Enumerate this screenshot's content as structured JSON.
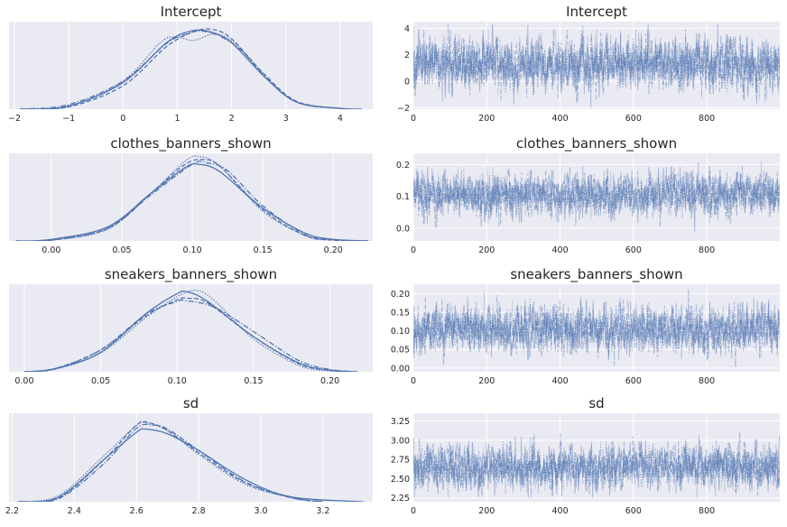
{
  "chart_data": [
    {
      "type": "line",
      "kind": "density",
      "title": "Intercept",
      "xlim": [
        -2.1,
        4.6
      ],
      "ylim": [
        0,
        1.12
      ],
      "xticks": [
        -2,
        -1,
        0,
        1,
        2,
        3,
        4
      ],
      "xtick_labels": [
        "−2",
        "−1",
        "0",
        "1",
        "2",
        "3",
        "4"
      ],
      "yticks": [],
      "ytick_labels": [],
      "line_styles": [
        "solid",
        "dashed",
        "dotted",
        "dashdot"
      ],
      "series_peaks": [
        {
          "style": "solid",
          "x": [
            -1.9,
            -1.0,
            0.0,
            0.8,
            1.25,
            1.6,
            2.0,
            2.6,
            3.2,
            4.0,
            4.4
          ],
          "y": [
            0.0,
            0.04,
            0.34,
            0.85,
            1.0,
            0.99,
            0.85,
            0.42,
            0.09,
            0.01,
            0.0
          ]
        },
        {
          "style": "dashed",
          "x": [
            -1.9,
            -1.0,
            0.0,
            0.8,
            1.3,
            1.65,
            2.0,
            2.6,
            3.2,
            4.0,
            4.4
          ],
          "y": [
            0.0,
            0.03,
            0.3,
            0.8,
            0.99,
            1.02,
            0.9,
            0.45,
            0.1,
            0.01,
            0.0
          ]
        },
        {
          "style": "dotted",
          "x": [
            -1.9,
            -1.0,
            0.0,
            0.7,
            1.0,
            1.3,
            1.7,
            2.1,
            2.6,
            3.2,
            4.0,
            4.4
          ],
          "y": [
            0.0,
            0.04,
            0.36,
            0.86,
            0.92,
            0.88,
            0.96,
            0.82,
            0.42,
            0.09,
            0.01,
            0.0
          ]
        },
        {
          "style": "dashdot",
          "x": [
            -1.9,
            -1.0,
            0.0,
            0.8,
            1.2,
            1.45,
            1.8,
            2.2,
            2.7,
            3.2,
            4.0,
            4.4
          ],
          "y": [
            0.0,
            0.06,
            0.36,
            0.84,
            0.97,
            1.0,
            0.93,
            0.74,
            0.36,
            0.09,
            0.01,
            0.0
          ]
        }
      ]
    },
    {
      "type": "line",
      "kind": "trace",
      "title": "Intercept",
      "xlim": [
        0,
        999
      ],
      "ylim": [
        -2.1,
        4.5
      ],
      "xticks": [
        0,
        200,
        400,
        600,
        800
      ],
      "xtick_labels": [
        "0",
        "200",
        "400",
        "600",
        "800"
      ],
      "yticks": [
        -2,
        0,
        2,
        4
      ],
      "ytick_labels": [
        "−2",
        "0",
        "2",
        "4"
      ],
      "trace": {
        "draws": 1000,
        "chains": 4,
        "mean": 1.35,
        "sd": 0.95,
        "min": -2.0,
        "max": 4.3
      }
    },
    {
      "type": "line",
      "kind": "density",
      "title": "clothes_banners_shown",
      "xlim": [
        -0.03,
        0.228
      ],
      "ylim": [
        0,
        1.12
      ],
      "xticks": [
        0.0,
        0.05,
        0.1,
        0.15,
        0.2
      ],
      "xtick_labels": [
        "0.00",
        "0.05",
        "0.10",
        "0.15",
        "0.20"
      ],
      "yticks": [],
      "ytick_labels": [],
      "line_styles": [
        "solid",
        "dashed",
        "dotted",
        "dashdot"
      ],
      "series_peaks": [
        {
          "style": "solid",
          "x": [
            -0.025,
            0.0,
            0.04,
            0.07,
            0.095,
            0.105,
            0.12,
            0.15,
            0.18,
            0.2,
            0.225
          ],
          "y": [
            0.0,
            0.02,
            0.18,
            0.6,
            0.94,
            0.98,
            0.88,
            0.42,
            0.1,
            0.02,
            0.0
          ]
        },
        {
          "style": "dashed",
          "x": [
            -0.025,
            0.0,
            0.04,
            0.07,
            0.095,
            0.108,
            0.12,
            0.15,
            0.18,
            0.2,
            0.225
          ],
          "y": [
            0.0,
            0.01,
            0.16,
            0.6,
            0.98,
            1.04,
            0.95,
            0.4,
            0.07,
            0.01,
            0.0
          ]
        },
        {
          "style": "dotted",
          "x": [
            -0.025,
            0.0,
            0.04,
            0.07,
            0.095,
            0.105,
            0.12,
            0.15,
            0.18,
            0.2,
            0.225
          ],
          "y": [
            0.0,
            0.01,
            0.15,
            0.6,
            1.02,
            1.08,
            0.95,
            0.38,
            0.07,
            0.01,
            0.0
          ]
        },
        {
          "style": "dashdot",
          "x": [
            -0.025,
            0.0,
            0.04,
            0.07,
            0.1,
            0.11,
            0.125,
            0.15,
            0.18,
            0.2,
            0.225
          ],
          "y": [
            0.0,
            0.01,
            0.16,
            0.58,
            0.98,
            1.0,
            0.9,
            0.45,
            0.08,
            0.02,
            0.0
          ]
        }
      ]
    },
    {
      "type": "line",
      "kind": "trace",
      "title": "clothes_banners_shown",
      "xlim": [
        0,
        999
      ],
      "ylim": [
        -0.04,
        0.235
      ],
      "xticks": [
        0,
        200,
        400,
        600,
        800
      ],
      "xtick_labels": [
        "0",
        "200",
        "400",
        "600",
        "800"
      ],
      "yticks": [
        0.0,
        0.1,
        0.2
      ],
      "ytick_labels": [
        "0.0",
        "0.1",
        "0.2"
      ],
      "trace": {
        "draws": 1000,
        "chains": 4,
        "mean": 0.105,
        "sd": 0.032,
        "min": -0.025,
        "max": 0.225
      }
    },
    {
      "type": "line",
      "kind": "density",
      "title": "sneakers_banners_shown",
      "xlim": [
        -0.01,
        0.228
      ],
      "ylim": [
        0,
        1.12
      ],
      "xticks": [
        0.0,
        0.05,
        0.1,
        0.15,
        0.2
      ],
      "xtick_labels": [
        "0.00",
        "0.05",
        "0.10",
        "0.15",
        "0.20"
      ],
      "yticks": [],
      "ytick_labels": [],
      "line_styles": [
        "solid",
        "dashed",
        "dotted",
        "dashdot"
      ],
      "series_peaks": [
        {
          "style": "solid",
          "x": [
            0.0,
            0.02,
            0.05,
            0.08,
            0.1,
            0.107,
            0.12,
            0.15,
            0.18,
            0.2,
            0.218
          ],
          "y": [
            0.0,
            0.04,
            0.25,
            0.75,
            1.0,
            1.02,
            0.9,
            0.45,
            0.11,
            0.02,
            0.0
          ]
        },
        {
          "style": "dashed",
          "x": [
            0.0,
            0.02,
            0.05,
            0.08,
            0.1,
            0.107,
            0.12,
            0.15,
            0.18,
            0.2,
            0.218
          ],
          "y": [
            0.0,
            0.04,
            0.28,
            0.72,
            0.92,
            0.94,
            0.88,
            0.45,
            0.1,
            0.02,
            0.0
          ]
        },
        {
          "style": "dotted",
          "x": [
            0.0,
            0.02,
            0.05,
            0.08,
            0.1,
            0.113,
            0.125,
            0.15,
            0.18,
            0.2,
            0.218
          ],
          "y": [
            0.0,
            0.03,
            0.24,
            0.7,
            0.96,
            1.04,
            0.9,
            0.42,
            0.08,
            0.01,
            0.0
          ]
        },
        {
          "style": "dashdot",
          "x": [
            0.0,
            0.02,
            0.05,
            0.08,
            0.1,
            0.105,
            0.125,
            0.155,
            0.18,
            0.2,
            0.218
          ],
          "y": [
            0.0,
            0.04,
            0.28,
            0.74,
            0.9,
            0.91,
            0.82,
            0.45,
            0.14,
            0.03,
            0.0
          ]
        }
      ]
    },
    {
      "type": "line",
      "kind": "trace",
      "title": "sneakers_banners_shown",
      "xlim": [
        0,
        999
      ],
      "ylim": [
        -0.01,
        0.225
      ],
      "xticks": [
        0,
        200,
        400,
        600,
        800
      ],
      "xtick_labels": [
        "0",
        "200",
        "400",
        "600",
        "800"
      ],
      "yticks": [
        0.0,
        0.05,
        0.1,
        0.15,
        0.2
      ],
      "ytick_labels": [
        "0.00",
        "0.05",
        "0.10",
        "0.15",
        "0.20"
      ],
      "trace": {
        "draws": 1000,
        "chains": 4,
        "mean": 0.105,
        "sd": 0.031,
        "min": 0.0,
        "max": 0.215
      }
    },
    {
      "type": "line",
      "kind": "density",
      "title": "sd",
      "xlim": [
        2.19,
        3.36
      ],
      "ylim": [
        0,
        1.12
      ],
      "xticks": [
        2.2,
        2.4,
        2.6,
        2.8,
        3.0,
        3.2
      ],
      "xtick_labels": [
        "2.2",
        "2.4",
        "2.6",
        "2.8",
        "3.0",
        "3.2"
      ],
      "yticks": [],
      "ytick_labels": [],
      "line_styles": [
        "solid",
        "dashed",
        "dotted",
        "dashdot"
      ],
      "series_peaks": [
        {
          "style": "solid",
          "x": [
            2.22,
            2.35,
            2.5,
            2.6,
            2.63,
            2.7,
            2.8,
            2.95,
            3.1,
            3.33
          ],
          "y": [
            0.0,
            0.06,
            0.55,
            0.88,
            0.92,
            0.86,
            0.65,
            0.28,
            0.06,
            0.0
          ]
        },
        {
          "style": "dashed",
          "x": [
            2.22,
            2.35,
            2.5,
            2.6,
            2.64,
            2.7,
            2.8,
            2.95,
            3.1,
            3.2
          ],
          "y": [
            0.0,
            0.05,
            0.55,
            0.97,
            1.0,
            0.9,
            0.62,
            0.24,
            0.05,
            0.0
          ]
        },
        {
          "style": "dotted",
          "x": [
            2.22,
            2.35,
            2.5,
            2.6,
            2.63,
            2.7,
            2.8,
            2.95,
            3.1,
            3.2
          ],
          "y": [
            0.0,
            0.08,
            0.6,
            0.97,
            1.0,
            0.9,
            0.6,
            0.22,
            0.05,
            0.0
          ]
        },
        {
          "style": "dashdot",
          "x": [
            2.22,
            2.35,
            2.5,
            2.6,
            2.65,
            2.7,
            2.8,
            2.95,
            3.1,
            3.2
          ],
          "y": [
            0.0,
            0.04,
            0.5,
            0.93,
            0.97,
            0.92,
            0.65,
            0.25,
            0.05,
            0.0
          ]
        }
      ]
    },
    {
      "type": "line",
      "kind": "trace",
      "title": "sd",
      "xlim": [
        0,
        999
      ],
      "ylim": [
        2.2,
        3.35
      ],
      "xticks": [
        0,
        200,
        400,
        600,
        800
      ],
      "xtick_labels": [
        "0",
        "200",
        "400",
        "600",
        "800"
      ],
      "yticks": [
        2.25,
        2.5,
        2.75,
        3.0,
        3.25
      ],
      "ytick_labels": [
        "2.25",
        "2.50",
        "2.75",
        "3.00",
        "3.25"
      ],
      "trace": {
        "draws": 1000,
        "chains": 4,
        "mean": 2.65,
        "sd": 0.14,
        "min": 2.25,
        "max": 3.3
      }
    }
  ],
  "colors": {
    "plot_bg": "#eaeaf2",
    "grid": "#ffffff",
    "line": "#4c72b0",
    "text": "#262626"
  }
}
